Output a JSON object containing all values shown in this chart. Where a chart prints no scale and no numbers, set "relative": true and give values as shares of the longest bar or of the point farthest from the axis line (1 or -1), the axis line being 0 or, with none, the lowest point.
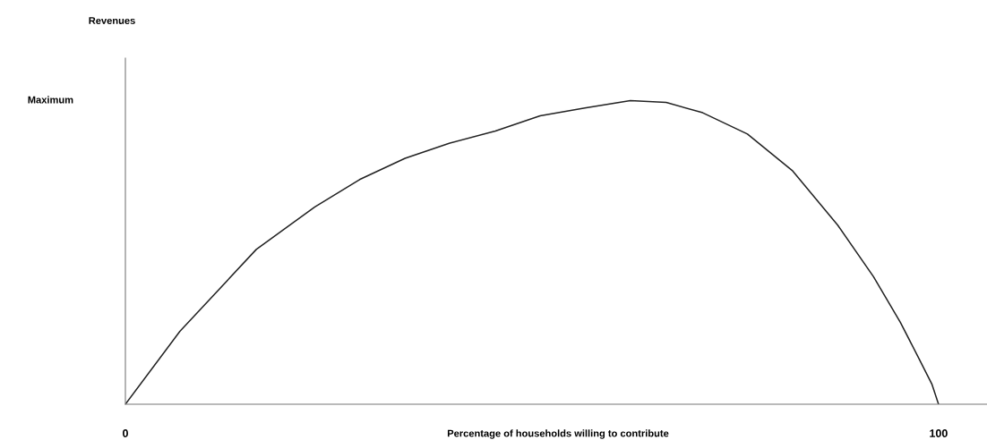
{
  "chart_data": {
    "type": "line",
    "relative": true,
    "xlabel": "Percentage of households willing to contribute",
    "x": [
      0,
      6.7,
      16.1,
      23.3,
      28.8,
      34.4,
      39.9,
      45.5,
      51,
      56.5,
      62.1,
      66.5,
      71,
      76.5,
      82,
      87.6,
      92,
      95.3,
      97.6,
      99.2,
      100
    ],
    "series": [
      {
        "color": "#222222",
        "values": [
          0,
          0.24,
          0.51,
          0.65,
          0.74,
          0.81,
          0.86,
          0.9,
          0.95,
          0.976,
          1,
          0.994,
          0.96,
          0.89,
          0.77,
          0.59,
          0.42,
          0.27,
          0.15,
          0.065,
          0
        ]
      }
    ],
    "xlim": [
      0,
      106.4
    ],
    "xticks": [
      0,
      100
    ],
    "annotations": [
      "Revenues",
      "Maximum"
    ],
    "grid": false,
    "legend": false,
    "marker": "none",
    "line_style": "solid"
  }
}
